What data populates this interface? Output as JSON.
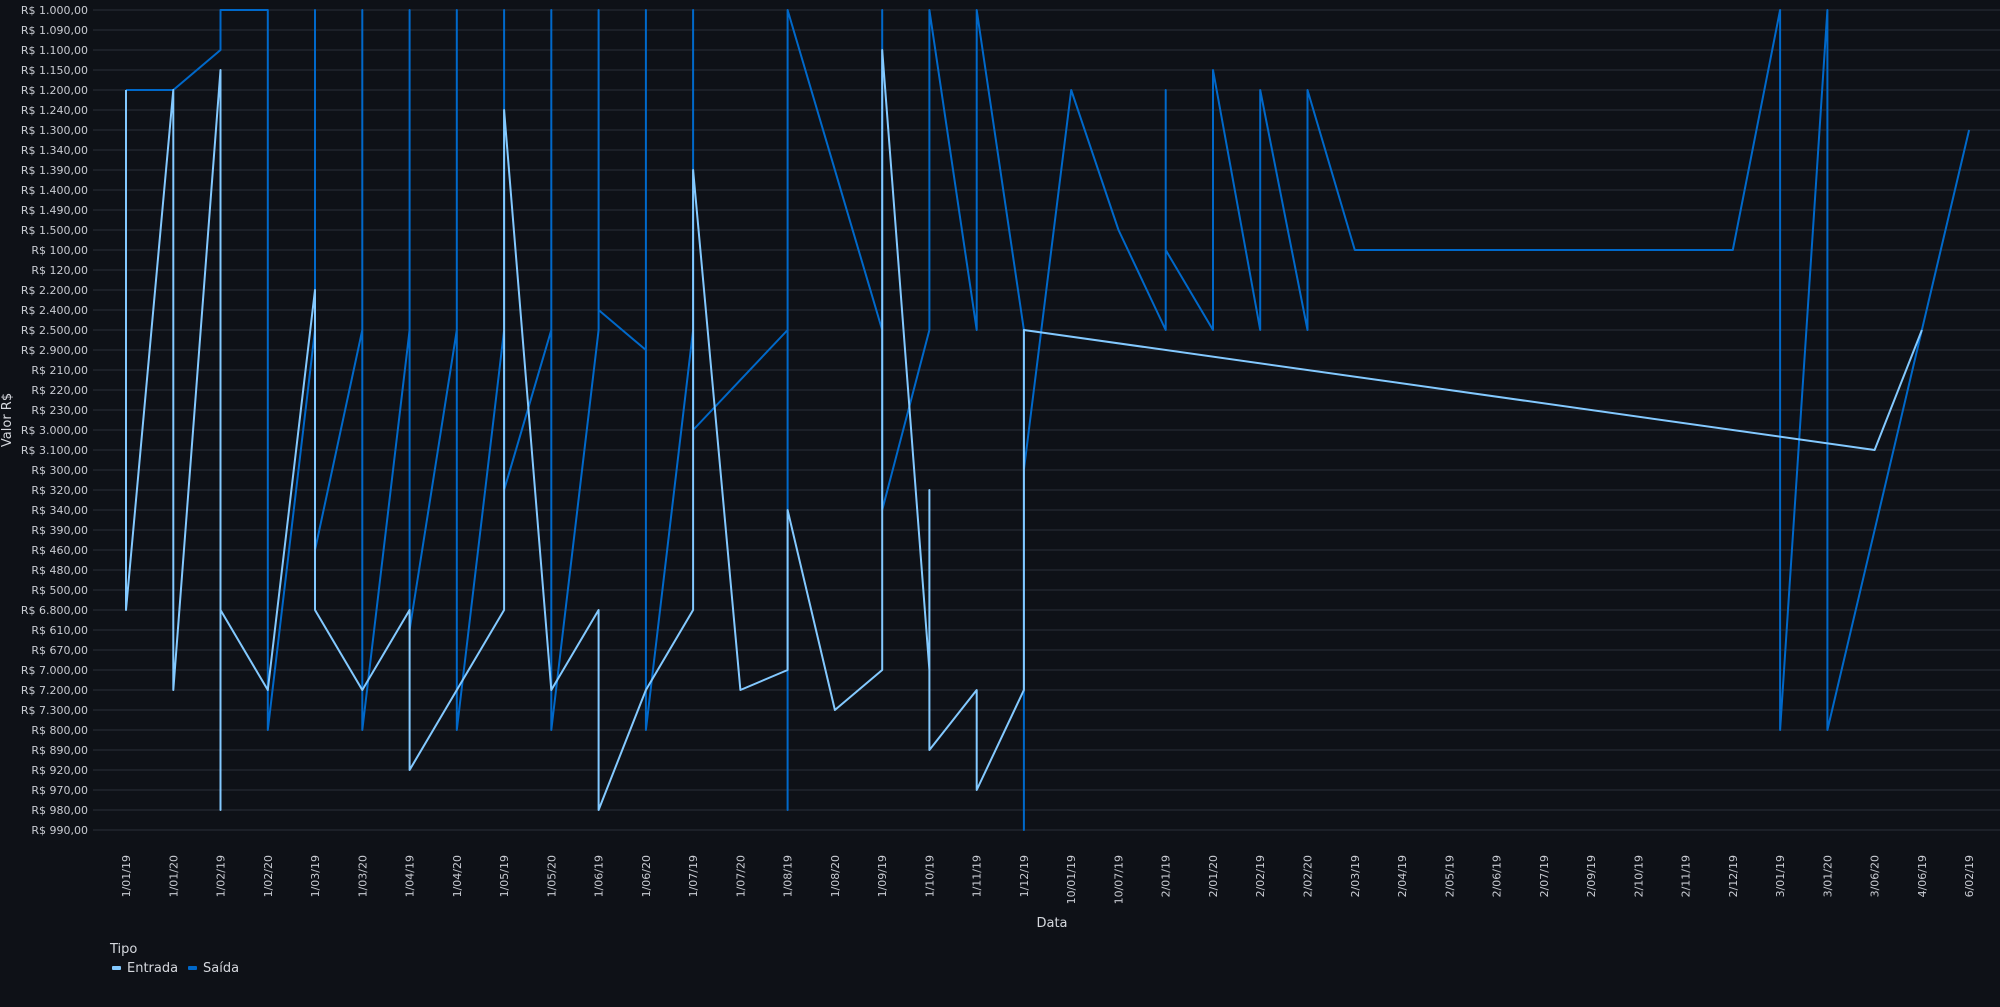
{
  "chart_data": {
    "type": "line",
    "xlabel": "Data",
    "ylabel": "Valor R$",
    "grid": true,
    "legend_position": "bottom-left",
    "legend": {
      "title": "Tipo",
      "entries": [
        {
          "label": "Entrada",
          "color": "#83c9ff"
        },
        {
          "label": "Saída",
          "color": "#0068c9"
        }
      ]
    },
    "categories": [
      "1/01/19",
      "1/01/20",
      "1/02/19",
      "1/02/20",
      "1/03/19",
      "1/03/20",
      "1/04/19",
      "1/04/20",
      "1/05/19",
      "1/05/20",
      "1/06/19",
      "1/06/20",
      "1/07/19",
      "1/07/20",
      "1/08/19",
      "1/08/20",
      "1/09/19",
      "1/10/19",
      "1/11/19",
      "1/12/19",
      "10/01/19",
      "10/07/19",
      "2/01/19",
      "2/01/20",
      "2/02/19",
      "2/02/20",
      "2/03/19",
      "2/04/19",
      "2/05/19",
      "2/06/19",
      "2/07/19",
      "2/09/19",
      "2/10/19",
      "2/11/19",
      "2/12/19",
      "3/01/19",
      "3/01/20",
      "3/06/20",
      "4/06/19",
      "6/02/19"
    ],
    "y_categories": [
      "R$ 1.000,00",
      "R$ 1.090,00",
      "R$ 1.100,00",
      "R$ 1.150,00",
      "R$ 1.200,00",
      "R$ 1.240,00",
      "R$ 1.300,00",
      "R$ 1.340,00",
      "R$ 1.390,00",
      "R$ 1.400,00",
      "R$ 1.490,00",
      "R$ 1.500,00",
      "R$ 100,00",
      "R$ 120,00",
      "R$ 2.200,00",
      "R$ 2.400,00",
      "R$ 2.500,00",
      "R$ 2.900,00",
      "R$ 210,00",
      "R$ 220,00",
      "R$ 230,00",
      "R$ 3.000,00",
      "R$ 3.100,00",
      "R$ 300,00",
      "R$ 320,00",
      "R$ 340,00",
      "R$ 390,00",
      "R$ 460,00",
      "R$ 480,00",
      "R$ 500,00",
      "R$ 6.800,00",
      "R$ 610,00",
      "R$ 670,00",
      "R$ 7.000,00",
      "R$ 7.200,00",
      "R$ 7.300,00",
      "R$ 800,00",
      "R$ 890,00",
      "R$ 920,00",
      "R$ 970,00",
      "R$ 980,00",
      "R$ 990,00"
    ],
    "series": [
      {
        "name": "Entrada",
        "color": "#83c9ff",
        "points": [
          [
            0,
            4
          ],
          [
            0,
            30
          ],
          [
            1,
            4
          ],
          [
            1,
            34
          ],
          [
            2,
            3
          ],
          [
            2,
            40
          ],
          [
            2,
            30
          ],
          [
            3,
            34
          ],
          [
            4,
            14
          ],
          [
            4,
            30
          ],
          [
            5,
            34
          ],
          [
            6,
            30
          ],
          [
            6,
            38
          ],
          [
            7,
            34
          ],
          [
            8,
            30
          ],
          [
            8,
            5
          ],
          [
            9,
            34
          ],
          [
            10,
            30
          ],
          [
            10,
            40
          ],
          [
            11,
            34
          ],
          [
            12,
            30
          ],
          [
            12,
            21
          ],
          [
            12,
            8
          ],
          [
            13,
            34
          ],
          [
            14,
            33
          ],
          [
            14,
            25
          ],
          [
            15,
            35
          ],
          [
            16,
            33
          ],
          [
            16,
            29
          ],
          [
            16,
            2
          ],
          [
            17,
            33
          ],
          [
            17,
            24
          ],
          [
            17,
            37
          ],
          [
            18,
            34
          ],
          [
            18,
            39
          ],
          [
            19,
            34
          ],
          [
            19,
            16
          ],
          [
            37,
            22
          ],
          [
            38,
            16
          ]
        ]
      },
      {
        "name": "Saída",
        "color": "#0068c9",
        "points": [
          [
            0,
            4
          ],
          [
            0,
            4
          ],
          [
            1,
            4
          ],
          [
            2,
            2
          ],
          [
            2,
            0
          ],
          [
            3,
            0
          ],
          [
            3,
            36
          ],
          [
            4,
            16
          ],
          [
            4,
            0
          ],
          [
            4,
            27
          ],
          [
            5,
            16
          ],
          [
            5,
            0
          ],
          [
            5,
            36
          ],
          [
            6,
            16
          ],
          [
            6,
            0
          ],
          [
            6,
            31
          ],
          [
            7,
            16
          ],
          [
            7,
            0
          ],
          [
            7,
            36
          ],
          [
            8,
            16
          ],
          [
            8,
            0
          ],
          [
            8,
            24
          ],
          [
            9,
            16
          ],
          [
            9,
            0
          ],
          [
            9,
            36
          ],
          [
            10,
            16
          ],
          [
            10,
            0
          ],
          [
            10,
            15
          ],
          [
            11,
            17
          ],
          [
            11,
            0
          ],
          [
            11,
            36
          ],
          [
            12,
            16
          ],
          [
            12,
            0
          ],
          [
            12,
            21
          ],
          [
            14,
            16
          ],
          [
            14,
            0
          ],
          [
            14,
            40
          ],
          [
            14,
            0
          ],
          [
            16,
            16
          ],
          [
            16,
            0
          ],
          [
            16,
            25
          ],
          [
            17,
            16
          ],
          [
            17,
            0
          ],
          [
            18,
            16
          ],
          [
            18,
            0
          ],
          [
            19,
            16
          ],
          [
            19,
            41
          ],
          [
            19,
            23
          ],
          [
            20,
            4
          ],
          [
            21,
            11
          ],
          [
            22,
            16
          ],
          [
            22,
            4
          ],
          [
            22,
            12
          ],
          [
            23,
            16
          ],
          [
            23,
            3
          ],
          [
            24,
            16
          ],
          [
            24,
            4
          ],
          [
            25,
            16
          ],
          [
            25,
            4
          ],
          [
            26,
            12
          ],
          [
            34,
            12
          ],
          [
            35,
            0
          ],
          [
            35,
            36
          ],
          [
            36,
            0
          ],
          [
            36,
            36
          ],
          [
            39,
            6
          ]
        ]
      }
    ]
  }
}
